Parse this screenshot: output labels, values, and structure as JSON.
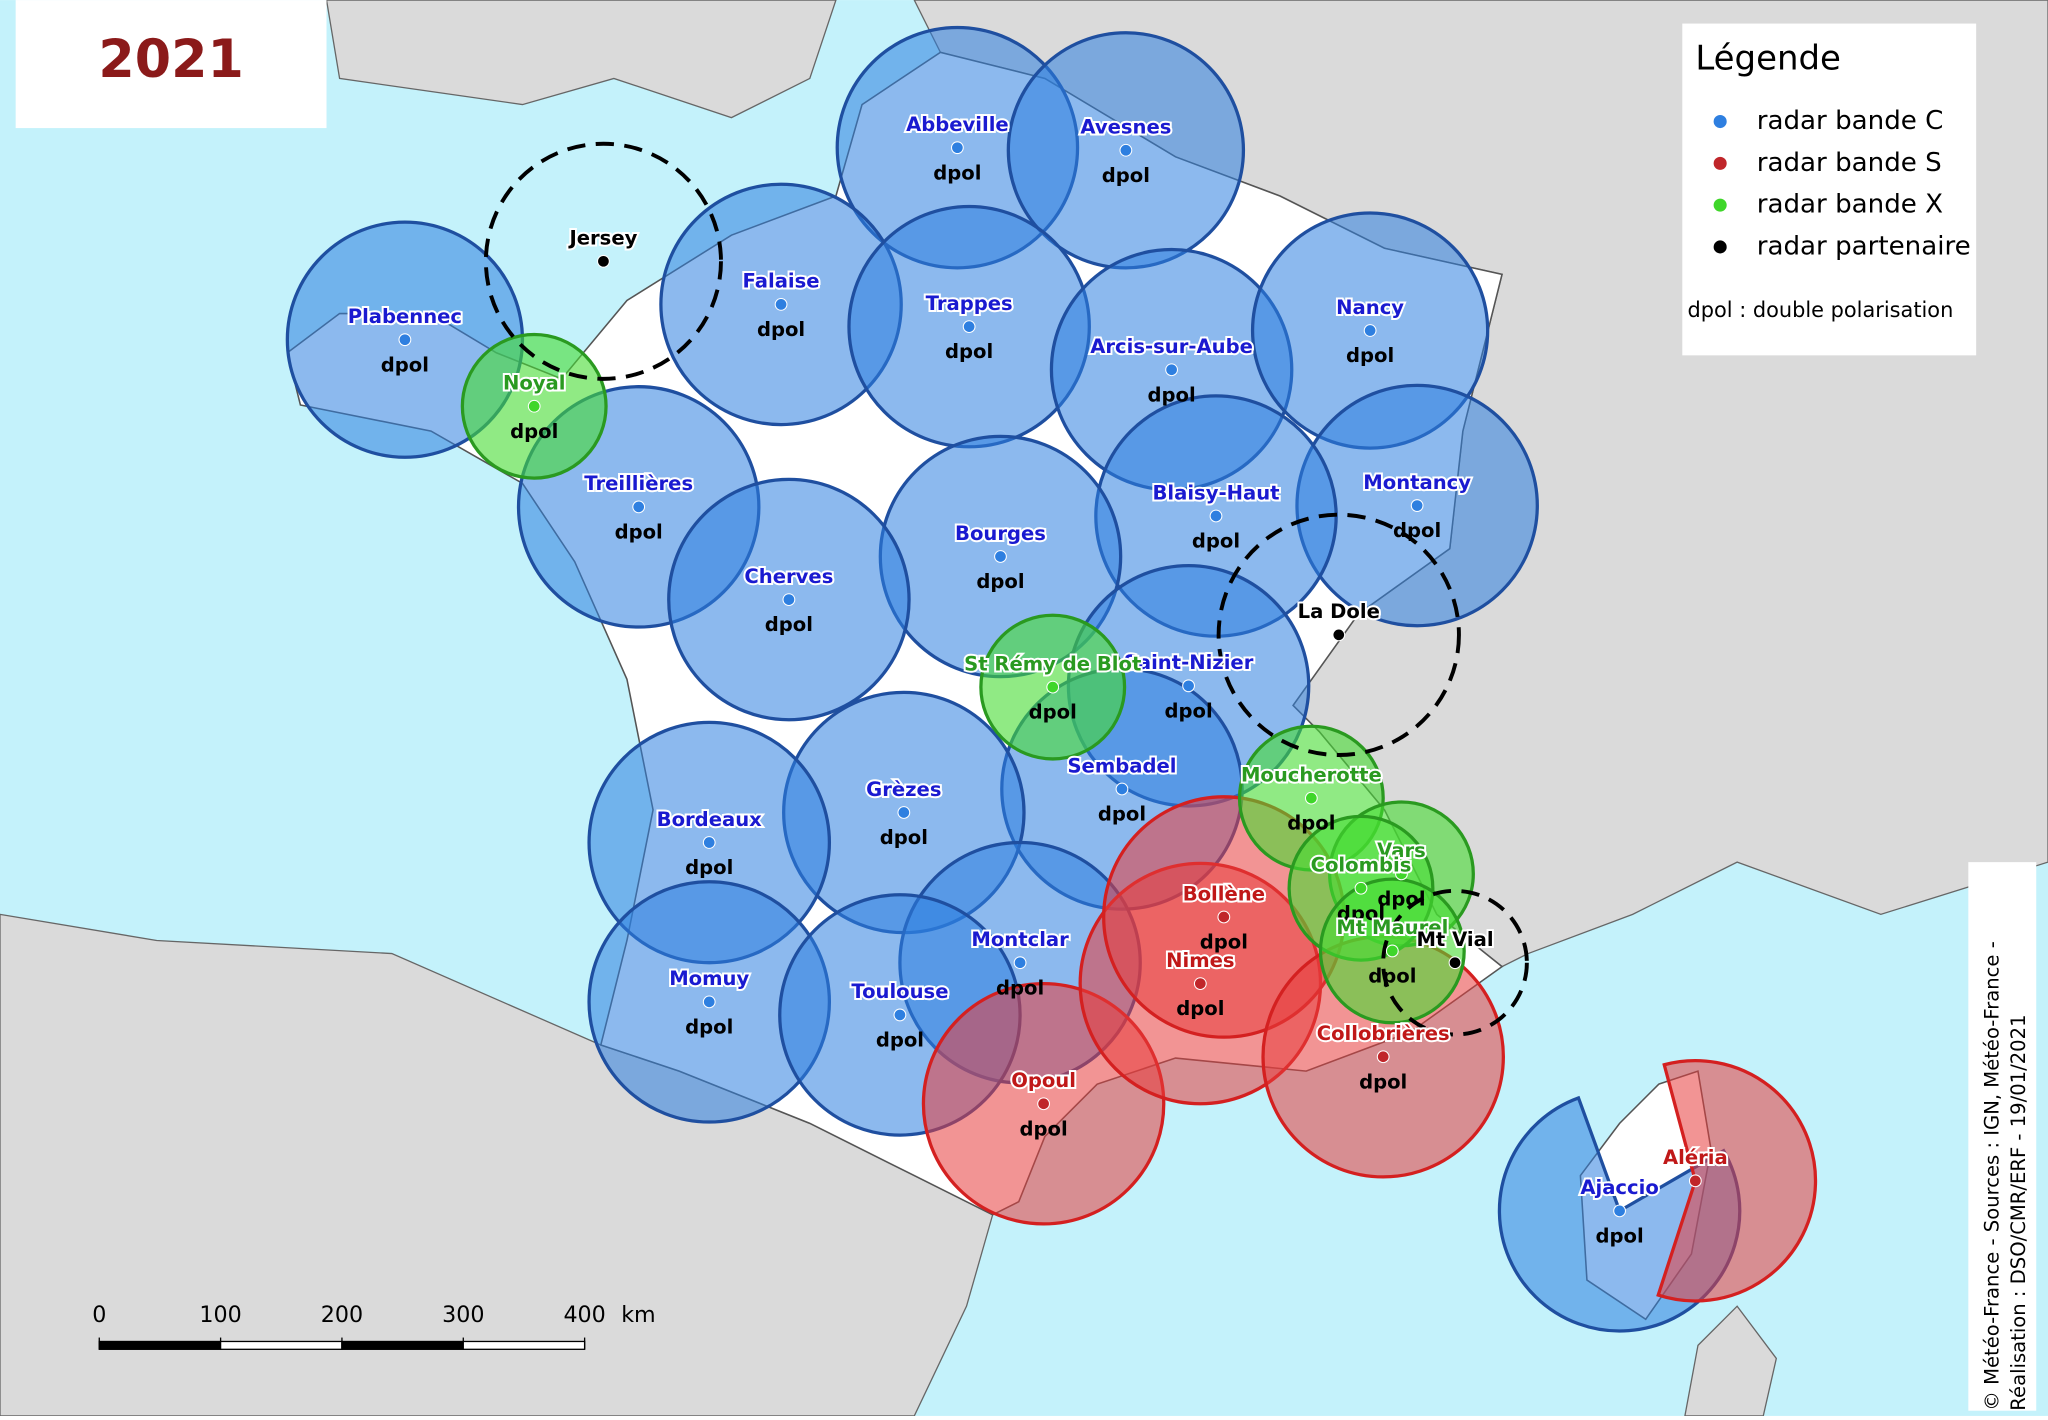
{
  "title": "2021",
  "legend": {
    "title": "Légende",
    "items": [
      {
        "label": "radar bande C",
        "color": "#2e7fe0",
        "radars": [
          {
            "name": "Plabennec",
            "dpol": "dpol"
          },
          {
            "name": "Abbeville",
            "dpol": "dpol"
          },
          {
            "name": "Avesnes",
            "dpol": "dpol"
          },
          {
            "name": "Falaise",
            "dpol": "dpol"
          },
          {
            "name": "Trappes",
            "dpol": "dpol"
          },
          {
            "name": "Arcis-sur-Aube",
            "dpol": "dpol"
          },
          {
            "name": "Nancy",
            "dpol": "dpol"
          },
          {
            "name": "Treillières",
            "dpol": "dpol"
          },
          {
            "name": "Montancy",
            "dpol": "dpol"
          },
          {
            "name": "Blaisy-Haut",
            "dpol": "dpol"
          },
          {
            "name": "Bourges",
            "dpol": "dpol"
          },
          {
            "name": "Cherves",
            "dpol": "dpol"
          },
          {
            "name": "Saint-Nizier",
            "dpol": "dpol"
          },
          {
            "name": "Sembadel",
            "dpol": "dpol"
          },
          {
            "name": "Grèzes",
            "dpol": "dpol"
          },
          {
            "name": "Bordeaux",
            "dpol": "dpol"
          },
          {
            "name": "Momuy",
            "dpol": "dpol"
          },
          {
            "name": "Montclar",
            "dpol": "dpol"
          },
          {
            "name": "Toulouse",
            "dpol": "dpol"
          },
          {
            "name": "Ajaccio",
            "dpol": "dpol"
          }
        ]
      },
      {
        "label": "radar bande S",
        "color": "#c0262a",
        "radars": [
          {
            "name": "Opoul",
            "dpol": "dpol"
          },
          {
            "name": "Nimes",
            "dpol": "dpol"
          },
          {
            "name": "Bollène",
            "dpol": "dpol"
          },
          {
            "name": "Collobrières",
            "dpol": "dpol"
          },
          {
            "name": "Aléria"
          }
        ]
      },
      {
        "label": "radar bande X",
        "color": "#3fd62a",
        "radars": [
          {
            "name": "Noyal",
            "dpol": "dpol"
          },
          {
            "name": "St Rémy de Blot",
            "dpol": "dpol"
          },
          {
            "name": "Moucherotte",
            "dpol": "dpol"
          },
          {
            "name": "Vars",
            "dpol": "dpol"
          },
          {
            "name": "Colombis",
            "dpol": "dpol"
          },
          {
            "name": "Mt Maurel",
            "dpol": "dpol"
          }
        ]
      },
      {
        "label": "radar partenaire",
        "color": "#000000",
        "radars": [
          {
            "name": "Jersey"
          },
          {
            "name": "La Dole"
          },
          {
            "name": "Mt Vial"
          }
        ]
      }
    ],
    "note": "dpol : double polarisation"
  },
  "scale_bar": {
    "ticks": [
      0,
      100,
      200,
      300,
      400
    ],
    "unit": "km"
  },
  "credit": [
    "© Météo-France - Sources : IGN, Météo-France -",
    "Réalisation : DSO/CMR/ERF - 19/01/2021"
  ]
}
